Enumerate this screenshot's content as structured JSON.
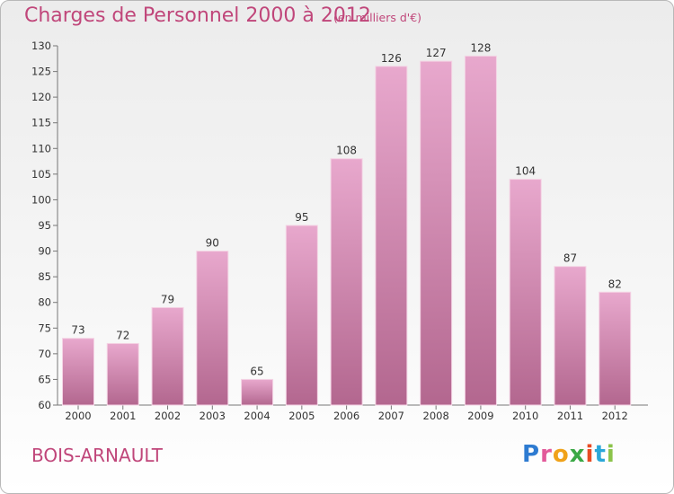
{
  "header": {
    "title": "Charges de Personnel 2000 à 2012",
    "subtitle": "(en milliers d'€)"
  },
  "footer": {
    "commune": "BOIS-ARNAULT",
    "logo_text": "Proxiti",
    "logo_colors": [
      "#2e7bd1",
      "#e25a9a",
      "#f0a21a",
      "#3aa845",
      "#e84b24",
      "#2aa7d8",
      "#8bc34a"
    ]
  },
  "colors": {
    "bar_light": "#e8a8cd",
    "bar_dark": "#b3678f",
    "accent_text": "#c0467a"
  },
  "chart_data": {
    "type": "bar",
    "categories": [
      "2000",
      "2001",
      "2002",
      "2003",
      "2004",
      "2005",
      "2006",
      "2007",
      "2008",
      "2009",
      "2010",
      "2011",
      "2012"
    ],
    "values": [
      73,
      72,
      79,
      90,
      65,
      95,
      108,
      126,
      127,
      128,
      104,
      87,
      82
    ],
    "value_labels": [
      "73",
      "72",
      "79",
      "90",
      "65",
      "95",
      "108",
      "126",
      "127",
      "128",
      "104",
      "87",
      "82"
    ],
    "ylim": [
      60,
      130
    ],
    "yticks": [
      60,
      65,
      70,
      75,
      80,
      85,
      90,
      95,
      100,
      105,
      110,
      115,
      120,
      125,
      130
    ],
    "grid": false
  }
}
